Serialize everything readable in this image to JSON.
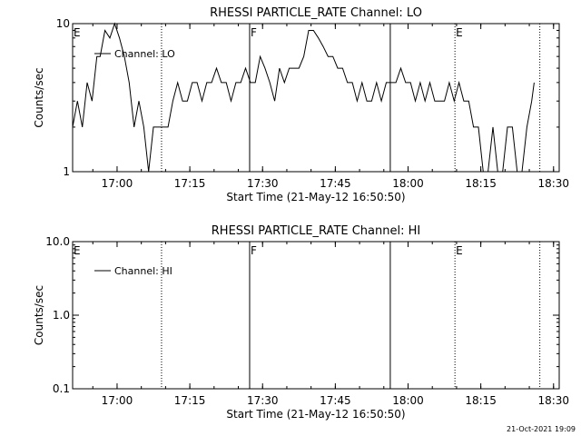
{
  "footer": {
    "timestamp": "21-Oct-2021 19:09"
  },
  "chart_data": [
    {
      "type": "line",
      "title": "RHESSI PARTICLE_RATE Channel: LO",
      "xlabel": "Start Time (21-May-12 16:50:50)",
      "ylabel": "Counts/sec",
      "yscale": "log",
      "ylim": [
        1,
        10
      ],
      "xlim": [
        "16:50:50",
        "18:31:10"
      ],
      "xticks": [
        "17:00",
        "17:15",
        "17:30",
        "17:45",
        "18:00",
        "18:15",
        "18:30"
      ],
      "yticks": [
        "1",
        "10"
      ],
      "legend": {
        "placement": "top-left",
        "entries": [
          "Channel: LO"
        ]
      },
      "annotations": [
        {
          "text": "E",
          "x": "16:50:50",
          "line": "none"
        },
        {
          "text": "F",
          "x": "17:27:20",
          "line": "solid"
        },
        {
          "text": "",
          "x": "17:56:20",
          "line": "solid"
        },
        {
          "text": "E",
          "x": "18:09:40",
          "line": "dotted"
        },
        {
          "text": "",
          "x": "17:09:10",
          "line": "dotted"
        },
        {
          "text": "",
          "x": "18:27:10",
          "line": "dotted"
        }
      ],
      "series": [
        {
          "name": "Channel: LO",
          "x": [
            "16:50:50",
            "16:51:50",
            "16:52:50",
            "16:53:50",
            "16:54:50",
            "16:55:50",
            "16:56:30",
            "16:57:30",
            "16:58:30",
            "16:59:30",
            "17:00:30",
            "17:01:30",
            "17:02:30",
            "17:03:30",
            "17:04:30",
            "17:05:30",
            "17:06:30",
            "17:07:30",
            "17:08:30",
            "17:09:30",
            "17:10:30",
            "17:11:30",
            "17:12:30",
            "17:13:30",
            "17:14:30",
            "17:15:30",
            "17:16:30",
            "17:17:30",
            "17:18:30",
            "17:19:30",
            "17:20:30",
            "17:21:30",
            "17:22:30",
            "17:23:30",
            "17:24:30",
            "17:25:30",
            "17:26:30",
            "17:27:30",
            "17:28:30",
            "17:29:30",
            "17:30:30",
            "17:31:30",
            "17:32:30",
            "17:33:30",
            "17:34:30",
            "17:35:30",
            "17:36:30",
            "17:37:30",
            "17:38:30",
            "17:39:30",
            "17:40:30",
            "17:41:30",
            "17:42:30",
            "17:43:30",
            "17:44:30",
            "17:45:30",
            "17:46:30",
            "17:47:30",
            "17:48:30",
            "17:49:30",
            "17:50:30",
            "17:51:30",
            "17:52:30",
            "17:53:30",
            "17:54:30",
            "17:55:30",
            "17:56:30",
            "17:57:30",
            "17:58:30",
            "17:59:30",
            "18:00:30",
            "18:01:30",
            "18:02:30",
            "18:03:30",
            "18:04:30",
            "18:05:30",
            "18:06:30",
            "18:07:30",
            "18:08:30",
            "18:09:30",
            "18:10:30",
            "18:11:30",
            "18:12:30",
            "18:13:30",
            "18:14:30",
            "18:15:30",
            "18:16:30",
            "18:17:30",
            "18:18:30",
            "18:19:30",
            "18:20:30",
            "18:21:30",
            "18:22:30",
            "18:23:30",
            "18:24:30",
            "18:25:30",
            "18:26:00"
          ],
          "values": [
            2,
            3,
            2,
            4,
            3,
            6,
            6,
            9,
            8,
            10,
            8,
            6,
            4,
            2,
            3,
            2,
            1,
            2,
            2,
            2,
            2,
            3,
            4,
            3,
            3,
            4,
            4,
            3,
            4,
            4,
            5,
            4,
            4,
            3,
            4,
            4,
            5,
            4,
            4,
            6,
            5,
            4,
            3,
            5,
            4,
            5,
            5,
            5,
            6,
            9,
            9,
            8,
            7,
            6,
            6,
            5,
            5,
            4,
            4,
            3,
            4,
            3,
            3,
            4,
            3,
            4,
            4,
            4,
            5,
            4,
            4,
            3,
            4,
            3,
            4,
            3,
            3,
            3,
            4,
            3,
            4,
            3,
            3,
            2,
            2,
            1,
            1,
            2,
            1,
            1,
            2,
            2,
            1,
            1,
            2,
            3,
            4
          ]
        }
      ]
    },
    {
      "type": "line",
      "title": "RHESSI PARTICLE_RATE Channel: HI",
      "xlabel": "Start Time (21-May-12 16:50:50)",
      "ylabel": "Counts/sec",
      "yscale": "log",
      "ylim": [
        0.1,
        10
      ],
      "xlim": [
        "16:50:50",
        "18:31:10"
      ],
      "xticks": [
        "17:00",
        "17:15",
        "17:30",
        "17:45",
        "18:00",
        "18:15",
        "18:30"
      ],
      "yticks": [
        "0.1",
        "1.0",
        "10.0"
      ],
      "legend": {
        "placement": "top-left",
        "entries": [
          "Channel: HI"
        ]
      },
      "annotations": [
        {
          "text": "E",
          "x": "16:50:50",
          "line": "none"
        },
        {
          "text": "F",
          "x": "17:27:20",
          "line": "solid"
        },
        {
          "text": "",
          "x": "17:56:20",
          "line": "solid"
        },
        {
          "text": "E",
          "x": "18:09:40",
          "line": "dotted"
        },
        {
          "text": "",
          "x": "17:09:10",
          "line": "dotted"
        },
        {
          "text": "",
          "x": "18:27:10",
          "line": "dotted"
        }
      ],
      "series": [
        {
          "name": "Channel: HI",
          "x": [],
          "values": []
        }
      ]
    }
  ]
}
